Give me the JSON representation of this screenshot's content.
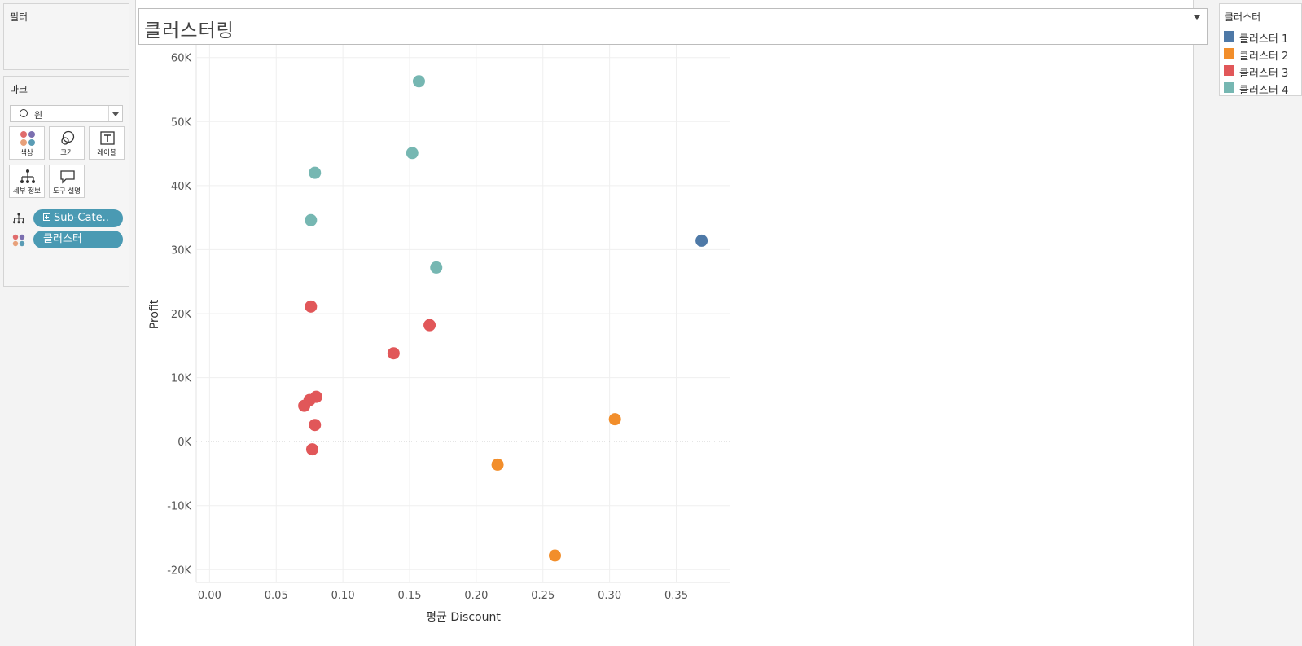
{
  "filters": {
    "title": "필터"
  },
  "marks": {
    "title": "마크",
    "mark_type": "원",
    "cards": [
      {
        "label": "색상",
        "icon": "color-icon"
      },
      {
        "label": "크기",
        "icon": "size-icon"
      },
      {
        "label": "레이블",
        "icon": "label-icon"
      },
      {
        "label": "세부 정보",
        "icon": "detail-icon"
      },
      {
        "label": "도구 설명",
        "icon": "tooltip-icon"
      }
    ],
    "pills": [
      {
        "label": "Sub-Cate..",
        "icon": "detail-icon"
      },
      {
        "label": "클러스터",
        "icon": "color-icon"
      }
    ]
  },
  "viz": {
    "title": "클러스터링"
  },
  "legend": {
    "title": "클러스터",
    "items": [
      {
        "label": "클러스터 1",
        "color": "#4e79a7"
      },
      {
        "label": "클러스터 2",
        "color": "#f28e2b"
      },
      {
        "label": "클러스터 3",
        "color": "#e15759"
      },
      {
        "label": "클러스터 4",
        "color": "#76b7b2"
      }
    ]
  },
  "chart_data": {
    "type": "scatter",
    "xlabel": "평균 Discount",
    "ylabel": "Profit",
    "xlim": [
      -0.01,
      0.39
    ],
    "ylim": [
      -22000,
      62000
    ],
    "x_ticks": [
      "0.00",
      "0.05",
      "0.10",
      "0.15",
      "0.20",
      "0.25",
      "0.30",
      "0.35"
    ],
    "y_ticks": [
      "-20K",
      "-10K",
      "0K",
      "10K",
      "20K",
      "30K",
      "40K",
      "50K",
      "60K"
    ],
    "grid": true,
    "legend_position": "right",
    "series": [
      {
        "name": "클러스터 1",
        "color": "#4e79a7",
        "points": [
          [
            0.369,
            31400
          ]
        ]
      },
      {
        "name": "클러스터 2",
        "color": "#f28e2b",
        "points": [
          [
            0.304,
            3500
          ],
          [
            0.216,
            -3600
          ],
          [
            0.259,
            -17800
          ]
        ]
      },
      {
        "name": "클러스터 3",
        "color": "#e15759",
        "points": [
          [
            0.076,
            21100
          ],
          [
            0.165,
            18200
          ],
          [
            0.138,
            13800
          ],
          [
            0.08,
            7000
          ],
          [
            0.075,
            6500
          ],
          [
            0.071,
            5600
          ],
          [
            0.079,
            2600
          ],
          [
            0.077,
            -1200
          ]
        ]
      },
      {
        "name": "클러스터 4",
        "color": "#76b7b2",
        "points": [
          [
            0.157,
            56300
          ],
          [
            0.152,
            45100
          ],
          [
            0.079,
            42000
          ],
          [
            0.076,
            34600
          ],
          [
            0.17,
            27200
          ]
        ]
      }
    ]
  }
}
